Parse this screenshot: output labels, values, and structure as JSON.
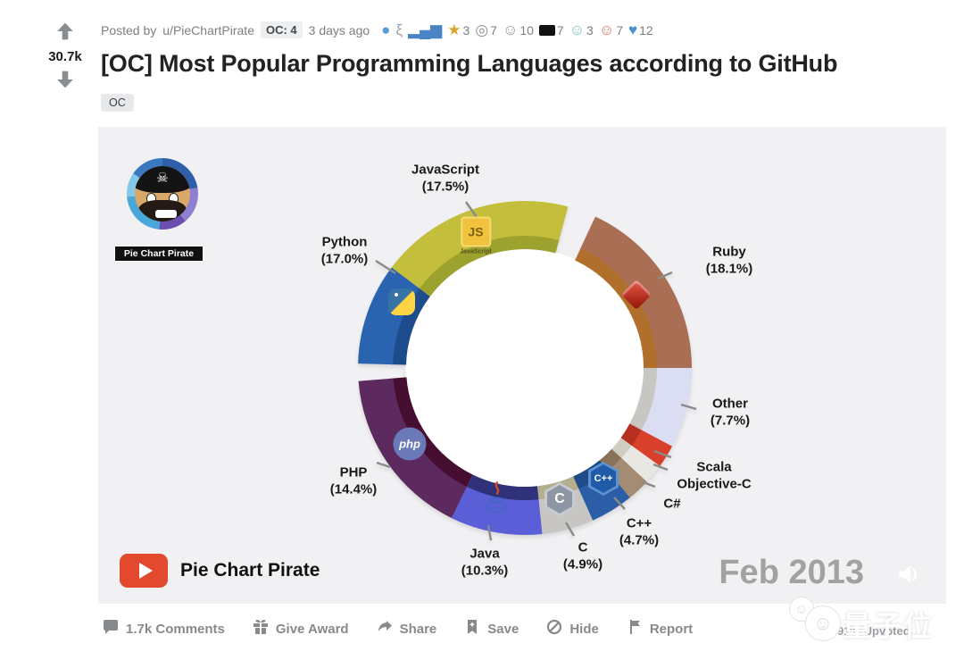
{
  "post": {
    "votes": "30.7k",
    "posted_by_prefix": "Posted by",
    "username": "u/PieChartPirate",
    "oc_badge": "OC: 4",
    "time_ago": "3 days ago",
    "title": "[OC] Most Popular Programming Languages according to GitHub",
    "flair": "OC",
    "awards": [
      {
        "name": "sash-blue",
        "glyph": "●",
        "color": "#5b9bd5",
        "count": ""
      },
      {
        "name": "doodle",
        "glyph": "ξ",
        "color": "#9aa0a5",
        "count": ""
      },
      {
        "name": "bar-chart",
        "glyph": "▂▄▆",
        "color": "#4a84c4",
        "count": ""
      },
      {
        "name": "trophy",
        "glyph": "★",
        "color": "#d9a62e",
        "count": "3"
      },
      {
        "name": "clapping",
        "glyph": "◎",
        "color": "#8d9297",
        "count": "7"
      },
      {
        "name": "smirk-face",
        "glyph": "☺",
        "color": "#8d9297",
        "count": "10"
      },
      {
        "name": "black-banner",
        "glyph": "▬",
        "color": "#111111",
        "count": "7"
      },
      {
        "name": "angel-snoo",
        "glyph": "☺",
        "color": "#6cc4b4",
        "count": "3"
      },
      {
        "name": "snoo-face",
        "glyph": "☺",
        "color": "#d86a5a",
        "count": "7"
      },
      {
        "name": "wholesome-snoo",
        "glyph": "♥",
        "color": "#4a90d2",
        "count": "12"
      }
    ],
    "actions": [
      {
        "name": "comments",
        "icon": "comment",
        "label": "1.7k Comments"
      },
      {
        "name": "give-award",
        "icon": "gift",
        "label": "Give Award"
      },
      {
        "name": "share",
        "icon": "share",
        "label": "Share"
      },
      {
        "name": "save",
        "icon": "bookmark",
        "label": "Save"
      },
      {
        "name": "hide",
        "icon": "hide",
        "label": "Hide"
      },
      {
        "name": "report",
        "icon": "flag",
        "label": "Report"
      }
    ],
    "upvoted": "91% Upvoted"
  },
  "video": {
    "channel_name": "Pie Chart Pirate",
    "avatar_caption": "Pie Chart Pirate",
    "date_label": "Feb 2013",
    "watermark_text": "量子位",
    "background_color": "#f1f1f3",
    "icon_glyphs": {
      "skull": "☠"
    },
    "logos": {
      "javascript_badge": "JS",
      "javascript_caption": "JavaScript",
      "php_badge": "php",
      "c_badge": "C",
      "cpp_badge": "C++"
    }
  },
  "chart_data": {
    "type": "pie",
    "title": "Most Popular Programming Languages according to GitHub",
    "period_label": "Feb 2013",
    "value_unit": "percent",
    "donut": true,
    "legend_position": "outside-callouts",
    "segments": [
      {
        "label": "JavaScript",
        "value": 17.5,
        "pct_label": "(17.5%)",
        "color": "#c3bf3d",
        "bevel": "#9da12e",
        "start": 307,
        "end": 375
      },
      {
        "label": "Ruby",
        "value": 18.1,
        "pct_label": "(18.1%)",
        "color": "#aa6e55",
        "bevel": "#b0702c",
        "start": 25,
        "end": 90
      },
      {
        "label": "Other",
        "value": 7.7,
        "pct_label": "(7.7%)",
        "color": "#dbddf2",
        "bevel": "#c6c6c2",
        "start": 90,
        "end": 118
      },
      {
        "label": "Scala",
        "value": null,
        "pct_label": null,
        "color": "#d8402c",
        "bevel": "#b5301f",
        "start": 118,
        "end": 126
      },
      {
        "label": "Objective-C",
        "value": null,
        "pct_label": null,
        "color": "#e9e7e1",
        "bevel": "#cfccc2",
        "start": 126,
        "end": 133
      },
      {
        "label": "C#",
        "value": null,
        "pct_label": null,
        "color": "#a48c74",
        "bevel": "#8a7258",
        "start": 133,
        "end": 141
      },
      {
        "label": "C++",
        "value": 4.7,
        "pct_label": "(4.7%)",
        "color": "#2b5ea6",
        "bevel": "#1f4b88",
        "start": 141,
        "end": 156
      },
      {
        "label": "C",
        "value": 4.9,
        "pct_label": "(4.9%)",
        "color": "#c8c6c2",
        "bevel": "#b3ae8c",
        "start": 156,
        "end": 174
      },
      {
        "label": "Java",
        "value": 10.3,
        "pct_label": "(10.3%)",
        "color": "#5a5fd8",
        "bevel": "#2f3278",
        "start": 174,
        "end": 206
      },
      {
        "label": "PHP",
        "value": 14.4,
        "pct_label": "(14.4%)",
        "color": "#5c2a5e",
        "bevel": "#460f31",
        "start": 206,
        "end": 265.5
      },
      {
        "label": "Python",
        "value": 17.0,
        "pct_label": "(17.0%)",
        "color": "#2a63b0",
        "bevel": "#1d4c8d",
        "start": 271.5,
        "end": 307
      }
    ]
  }
}
